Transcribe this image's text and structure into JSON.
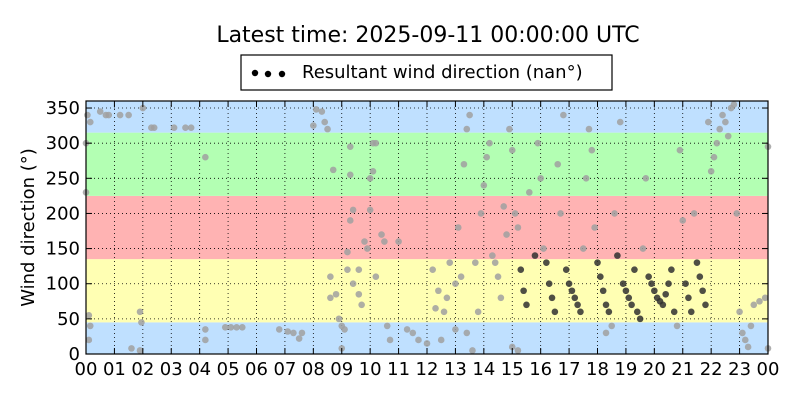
{
  "chart_data": {
    "type": "scatter",
    "title": "Latest time: 2025-09-11 00:00:00 UTC",
    "xlabel": "",
    "ylabel": "Wind direction (°)",
    "x_range_hours": [
      0,
      24
    ],
    "xtick_labels": [
      "00",
      "01",
      "02",
      "03",
      "04",
      "05",
      "06",
      "07",
      "08",
      "09",
      "10",
      "11",
      "12",
      "13",
      "14",
      "15",
      "16",
      "17",
      "18",
      "19",
      "20",
      "21",
      "22",
      "23",
      "00"
    ],
    "ylim": [
      0,
      360
    ],
    "ytick_values": [
      0,
      50,
      100,
      150,
      200,
      250,
      300,
      350
    ],
    "grid": true,
    "legend": {
      "position": "top-center",
      "label": "Resultant wind direction (nan°)",
      "marker_color": "#000000"
    },
    "bands": [
      {
        "from": 0,
        "to": 45,
        "color": "#bfe0ff"
      },
      {
        "from": 45,
        "to": 135,
        "color": "#ffffb3"
      },
      {
        "from": 135,
        "to": 225,
        "color": "#ffb3b3"
      },
      {
        "from": 225,
        "to": 315,
        "color": "#b3ffb3"
      },
      {
        "from": 315,
        "to": 360,
        "color": "#bfe0ff"
      }
    ],
    "series": [
      {
        "color_old": "#a0a0a0",
        "color_recent": "#303030",
        "points": [
          [
            0.0,
            300
          ],
          [
            0.0,
            230
          ],
          [
            0.05,
            340
          ],
          [
            0.15,
            330
          ],
          [
            0.1,
            55
          ],
          [
            0.15,
            40
          ],
          [
            0.1,
            20
          ],
          [
            0.5,
            345
          ],
          [
            0.7,
            340
          ],
          [
            0.8,
            340
          ],
          [
            1.2,
            340
          ],
          [
            1.5,
            340
          ],
          [
            1.6,
            8
          ],
          [
            1.9,
            5
          ],
          [
            1.9,
            60
          ],
          [
            1.95,
            45
          ],
          [
            2.0,
            350
          ],
          [
            2.3,
            322
          ],
          [
            2.4,
            322
          ],
          [
            3.1,
            322
          ],
          [
            3.5,
            322
          ],
          [
            3.7,
            322
          ],
          [
            4.2,
            280
          ],
          [
            4.2,
            20
          ],
          [
            4.2,
            35
          ],
          [
            4.9,
            38
          ],
          [
            5.1,
            38
          ],
          [
            5.3,
            38
          ],
          [
            5.5,
            38
          ],
          [
            6.8,
            35
          ],
          [
            7.1,
            32
          ],
          [
            7.3,
            30
          ],
          [
            7.6,
            30
          ],
          [
            7.5,
            22
          ],
          [
            8.0,
            325
          ],
          [
            8.1,
            348
          ],
          [
            8.3,
            345
          ],
          [
            8.4,
            330
          ],
          [
            8.5,
            320
          ],
          [
            8.7,
            262
          ],
          [
            8.6,
            80
          ],
          [
            8.6,
            110
          ],
          [
            8.8,
            85
          ],
          [
            8.9,
            50
          ],
          [
            9.0,
            40
          ],
          [
            9.0,
            8
          ],
          [
            9.1,
            35
          ],
          [
            9.2,
            145
          ],
          [
            9.3,
            190
          ],
          [
            9.4,
            205
          ],
          [
            9.3,
            255
          ],
          [
            9.3,
            295
          ],
          [
            9.2,
            120
          ],
          [
            9.4,
            100
          ],
          [
            9.6,
            120
          ],
          [
            9.6,
            85
          ],
          [
            9.7,
            70
          ],
          [
            9.8,
            160
          ],
          [
            9.9,
            150
          ],
          [
            10.0,
            205
          ],
          [
            10.1,
            260
          ],
          [
            10.0,
            250
          ],
          [
            10.1,
            300
          ],
          [
            10.2,
            300
          ],
          [
            10.2,
            110
          ],
          [
            10.4,
            170
          ],
          [
            10.5,
            160
          ],
          [
            10.6,
            40
          ],
          [
            10.7,
            20
          ],
          [
            11.0,
            160
          ],
          [
            11.3,
            35
          ],
          [
            11.5,
            30
          ],
          [
            11.7,
            20
          ],
          [
            12.0,
            15
          ],
          [
            12.3,
            65
          ],
          [
            12.2,
            120
          ],
          [
            12.4,
            90
          ],
          [
            12.6,
            60
          ],
          [
            12.7,
            80
          ],
          [
            12.8,
            130
          ],
          [
            12.5,
            20
          ],
          [
            13.0,
            35
          ],
          [
            13.0,
            100
          ],
          [
            13.1,
            180
          ],
          [
            13.2,
            110
          ],
          [
            13.3,
            270
          ],
          [
            13.4,
            320
          ],
          [
            13.5,
            340
          ],
          [
            13.4,
            30
          ],
          [
            13.6,
            5
          ],
          [
            13.7,
            130
          ],
          [
            13.8,
            60
          ],
          [
            13.9,
            200
          ],
          [
            14.0,
            240
          ],
          [
            14.1,
            280
          ],
          [
            14.2,
            300
          ],
          [
            14.3,
            140
          ],
          [
            14.4,
            130
          ],
          [
            14.5,
            110
          ],
          [
            14.6,
            80
          ],
          [
            14.7,
            210
          ],
          [
            14.8,
            170
          ],
          [
            14.9,
            320
          ],
          [
            15.0,
            290
          ],
          [
            15.1,
            200
          ],
          [
            15.2,
            180
          ],
          [
            15.3,
            120
          ],
          [
            15.4,
            90
          ],
          [
            15.5,
            70
          ],
          [
            15.6,
            230
          ],
          [
            15.0,
            10
          ],
          [
            15.2,
            5
          ],
          [
            15.8,
            140
          ],
          [
            15.9,
            300
          ],
          [
            16.0,
            250
          ],
          [
            16.1,
            150
          ],
          [
            16.2,
            130
          ],
          [
            16.3,
            100
          ],
          [
            16.4,
            80
          ],
          [
            16.5,
            60
          ],
          [
            16.6,
            270
          ],
          [
            16.7,
            200
          ],
          [
            16.8,
            340
          ],
          [
            16.9,
            120
          ],
          [
            17.0,
            100
          ],
          [
            17.1,
            90
          ],
          [
            17.2,
            80
          ],
          [
            17.3,
            70
          ],
          [
            17.4,
            60
          ],
          [
            17.5,
            150
          ],
          [
            17.6,
            250
          ],
          [
            17.7,
            320
          ],
          [
            17.8,
            290
          ],
          [
            17.9,
            180
          ],
          [
            18.0,
            130
          ],
          [
            18.1,
            110
          ],
          [
            18.2,
            90
          ],
          [
            18.3,
            70
          ],
          [
            18.4,
            60
          ],
          [
            18.5,
            40
          ],
          [
            18.3,
            30
          ],
          [
            18.6,
            200
          ],
          [
            18.7,
            140
          ],
          [
            18.8,
            330
          ],
          [
            18.9,
            100
          ],
          [
            19.0,
            90
          ],
          [
            19.1,
            80
          ],
          [
            19.2,
            70
          ],
          [
            19.3,
            120
          ],
          [
            19.4,
            60
          ],
          [
            19.5,
            50
          ],
          [
            19.6,
            150
          ],
          [
            19.7,
            250
          ],
          [
            19.8,
            110
          ],
          [
            19.9,
            100
          ],
          [
            20.0,
            90
          ],
          [
            20.1,
            80
          ],
          [
            20.2,
            75
          ],
          [
            20.3,
            70
          ],
          [
            20.4,
            85
          ],
          [
            20.5,
            100
          ],
          [
            20.6,
            120
          ],
          [
            20.7,
            60
          ],
          [
            20.8,
            40
          ],
          [
            20.9,
            290
          ],
          [
            21.0,
            190
          ],
          [
            21.1,
            100
          ],
          [
            21.2,
            80
          ],
          [
            21.3,
            60
          ],
          [
            21.4,
            200
          ],
          [
            21.5,
            130
          ],
          [
            21.6,
            110
          ],
          [
            21.7,
            90
          ],
          [
            21.8,
            70
          ],
          [
            21.9,
            330
          ],
          [
            22.0,
            260
          ],
          [
            22.1,
            280
          ],
          [
            22.2,
            300
          ],
          [
            22.3,
            320
          ],
          [
            22.4,
            340
          ],
          [
            22.5,
            330
          ],
          [
            22.6,
            310
          ],
          [
            22.7,
            350
          ],
          [
            22.8,
            355
          ],
          [
            22.9,
            200
          ],
          [
            23.0,
            60
          ],
          [
            23.1,
            30
          ],
          [
            23.2,
            20
          ],
          [
            23.3,
            10
          ],
          [
            23.4,
            40
          ],
          [
            23.5,
            70
          ],
          [
            23.7,
            75
          ],
          [
            23.9,
            80
          ],
          [
            24.0,
            8
          ],
          [
            24.0,
            295
          ]
        ]
      }
    ]
  }
}
